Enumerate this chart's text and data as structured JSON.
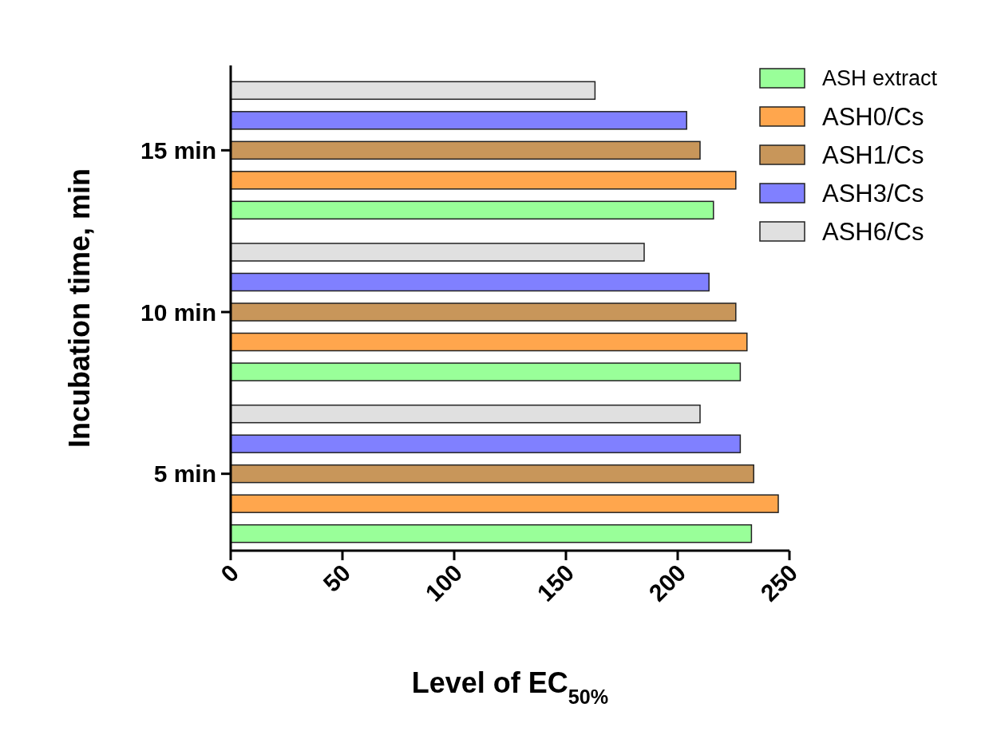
{
  "chart_data": {
    "type": "bar",
    "orientation": "horizontal",
    "xlabel": "Level of EC$_{50%}$",
    "ylabel": "Incubation time, min",
    "categories": [
      "15 min",
      "10 min",
      "5 min"
    ],
    "series": [
      {
        "name": "ASH extract",
        "color": "#99ff99",
        "values": [
          216,
          228,
          233
        ]
      },
      {
        "name": "ASH0/Cs",
        "color": "#ffa64d",
        "values": [
          226,
          231,
          245
        ]
      },
      {
        "name": "ASH1/Cs",
        "color": "#c8965a",
        "values": [
          210,
          226,
          234
        ]
      },
      {
        "name": "ASH3/Cs",
        "color": "#8080ff",
        "values": [
          204,
          214,
          228
        ]
      },
      {
        "name": "ASH6/Cs",
        "color": "#e0e0e0",
        "values": [
          163,
          185,
          210
        ]
      }
    ],
    "xlim": [
      0,
      250
    ],
    "xticks": [
      0,
      50,
      100,
      150,
      200,
      250
    ],
    "grid": false,
    "legend": "top right"
  }
}
